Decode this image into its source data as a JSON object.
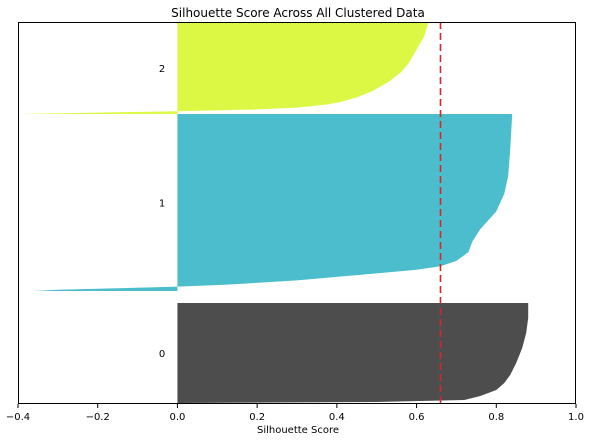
{
  "chart_data": {
    "type": "area",
    "title": "Silhouette Score Across All Clustered Data",
    "xlabel": "Silhouette Score",
    "ylabel": "",
    "xlim": [
      -0.4,
      1.0
    ],
    "xticks": [
      "−0.4",
      "−0.2",
      "0.0",
      "0.2",
      "0.4",
      "0.6",
      "0.8",
      "1.0"
    ],
    "xtick_values": [
      -0.4,
      -0.2,
      0.0,
      0.2,
      0.4,
      0.6,
      0.8,
      1.0
    ],
    "grid": false,
    "legend": "none",
    "average_line": {
      "value": 0.66,
      "color": "#d62728",
      "style": "dashed"
    },
    "clusters": [
      {
        "label": "0",
        "color": "#4d4d4d",
        "max_score": 0.88,
        "min_score": 0.0,
        "profile": [
          [
            0.0,
            0.88
          ],
          [
            0.15,
            0.88
          ],
          [
            0.3,
            0.875
          ],
          [
            0.45,
            0.865
          ],
          [
            0.6,
            0.85
          ],
          [
            0.72,
            0.835
          ],
          [
            0.8,
            0.82
          ],
          [
            0.87,
            0.8
          ],
          [
            0.93,
            0.76
          ],
          [
            0.97,
            0.72
          ],
          [
            0.99,
            0.5
          ],
          [
            1.0,
            0.0
          ]
        ]
      },
      {
        "label": "1",
        "color": "#4bbdcc",
        "max_score": 0.84,
        "min_score": -0.36,
        "profile": [
          [
            0.0,
            0.84
          ],
          [
            0.2,
            0.835
          ],
          [
            0.35,
            0.83
          ],
          [
            0.45,
            0.82
          ],
          [
            0.55,
            0.8
          ],
          [
            0.65,
            0.76
          ],
          [
            0.72,
            0.74
          ],
          [
            0.78,
            0.73
          ],
          [
            0.83,
            0.7
          ],
          [
            0.86,
            0.66
          ],
          [
            0.88,
            0.6
          ],
          [
            0.91,
            0.45
          ],
          [
            0.94,
            0.3
          ],
          [
            0.965,
            0.12
          ],
          [
            0.975,
            0.0
          ],
          [
            0.985,
            -0.15
          ],
          [
            0.993,
            -0.3
          ],
          [
            1.0,
            -0.36
          ]
        ]
      },
      {
        "label": "2",
        "color": "#dcf844",
        "max_score": 0.63,
        "min_score": -0.4,
        "profile": [
          [
            0.0,
            0.63
          ],
          [
            0.15,
            0.62
          ],
          [
            0.3,
            0.6
          ],
          [
            0.45,
            0.58
          ],
          [
            0.55,
            0.56
          ],
          [
            0.65,
            0.53
          ],
          [
            0.75,
            0.49
          ],
          [
            0.82,
            0.45
          ],
          [
            0.87,
            0.41
          ],
          [
            0.9,
            0.37
          ],
          [
            0.93,
            0.3
          ],
          [
            0.95,
            0.2
          ],
          [
            0.97,
            0.0
          ],
          [
            0.985,
            -0.2
          ],
          [
            1.0,
            -0.4
          ]
        ]
      }
    ]
  }
}
